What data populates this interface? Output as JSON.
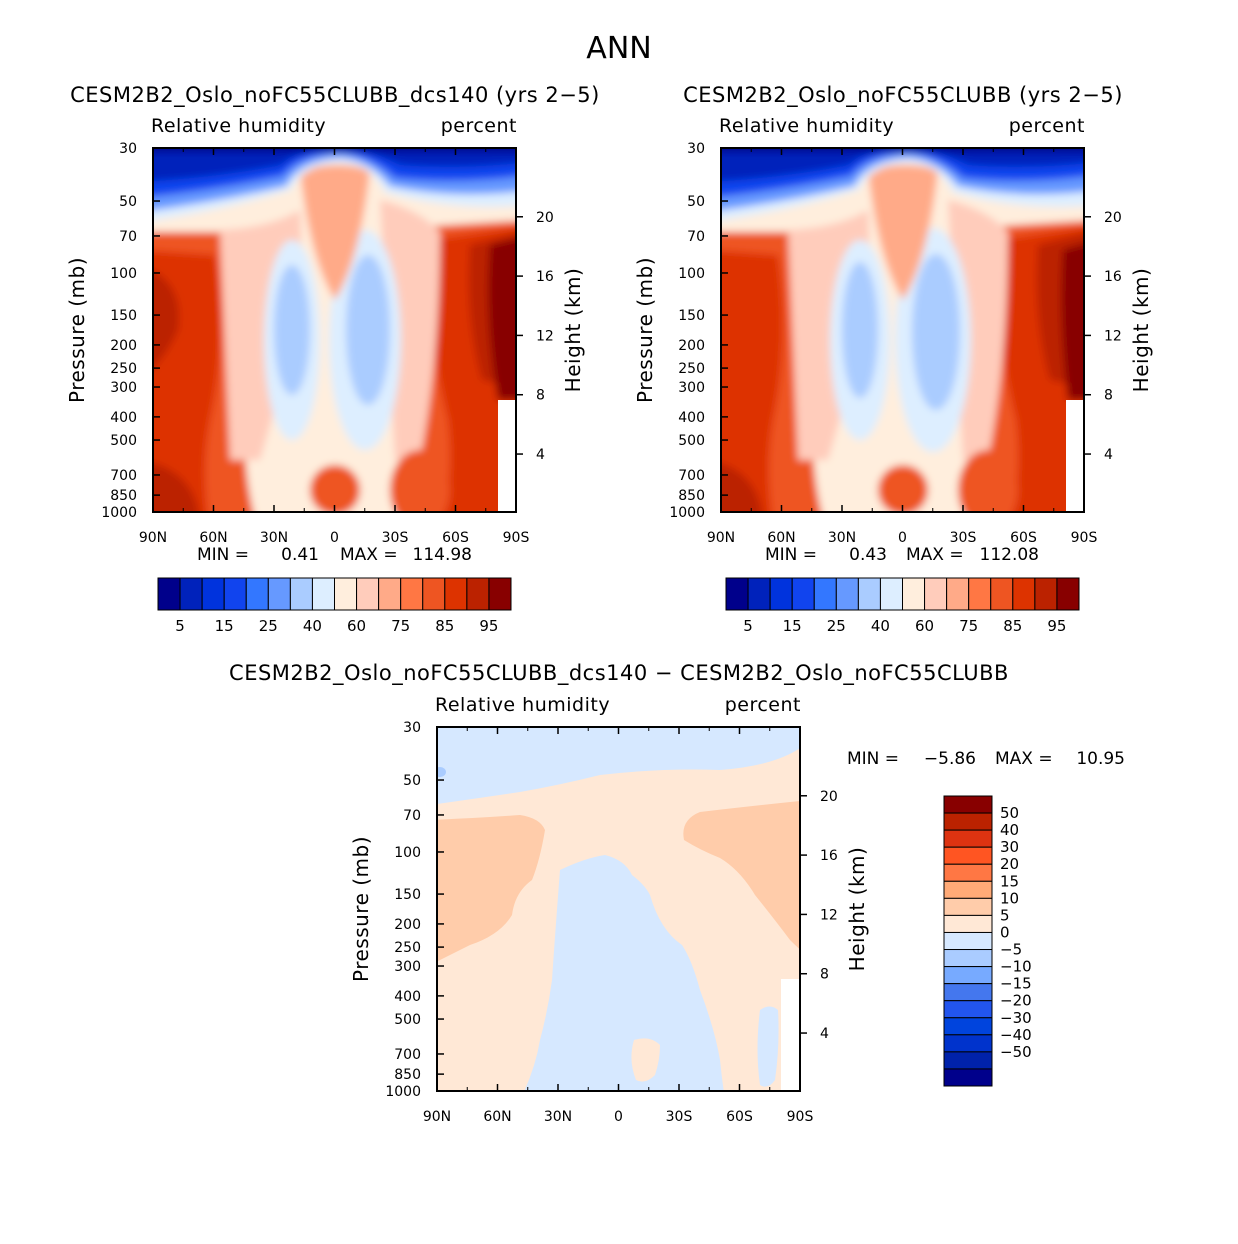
{
  "chart_data": {
    "title": "ANN",
    "panels": [
      {
        "id": "test",
        "type": "heatmap",
        "case_title": "CESM2B2_Oslo_noFC55CLUBB_dcs140 (yrs 2−5)",
        "variable": "Relative humidity",
        "units": "percent",
        "ylabel": "Pressure (mb)",
        "ylabel_right": "Height (km)",
        "x_ticks": [
          "90N",
          "60N",
          "30N",
          "0",
          "30S",
          "60S",
          "90S"
        ],
        "y_ticks": [
          "30",
          "50",
          "70",
          "100",
          "150",
          "200",
          "250",
          "300",
          "400",
          "500",
          "700",
          "850",
          "1000"
        ],
        "right_ticks": [
          "20",
          "16",
          "12",
          "8",
          "4"
        ],
        "min_label": "MIN =",
        "min_value": "0.41",
        "max_label": "MAX =",
        "max_value": "114.98",
        "colorbar_labels": [
          "5",
          "15",
          "25",
          "40",
          "60",
          "75",
          "85",
          "95"
        ]
      },
      {
        "id": "control",
        "type": "heatmap",
        "case_title": "CESM2B2_Oslo_noFC55CLUBB (yrs 2−5)",
        "variable": "Relative humidity",
        "units": "percent",
        "ylabel": "Pressure (mb)",
        "ylabel_right": "Height (km)",
        "x_ticks": [
          "90N",
          "60N",
          "30N",
          "0",
          "30S",
          "60S",
          "90S"
        ],
        "y_ticks": [
          "30",
          "50",
          "70",
          "100",
          "150",
          "200",
          "250",
          "300",
          "400",
          "500",
          "700",
          "850",
          "1000"
        ],
        "right_ticks": [
          "20",
          "16",
          "12",
          "8",
          "4"
        ],
        "min_label": "MIN =",
        "min_value": "0.43",
        "max_label": "MAX =",
        "max_value": "112.08",
        "colorbar_labels": [
          "5",
          "15",
          "25",
          "40",
          "60",
          "75",
          "85",
          "95"
        ]
      },
      {
        "id": "diff",
        "type": "heatmap",
        "case_title": "CESM2B2_Oslo_noFC55CLUBB_dcs140 − CESM2B2_Oslo_noFC55CLUBB",
        "variable": "Relative humidity",
        "units": "percent",
        "ylabel": "Pressure (mb)",
        "ylabel_right": "Height (km)",
        "x_ticks": [
          "90N",
          "60N",
          "30N",
          "0",
          "30S",
          "60S",
          "90S"
        ],
        "y_ticks": [
          "30",
          "50",
          "70",
          "100",
          "150",
          "200",
          "250",
          "300",
          "400",
          "500",
          "700",
          "850",
          "1000"
        ],
        "right_ticks": [
          "20",
          "16",
          "12",
          "8",
          "4"
        ],
        "min_label": "MIN =",
        "min_value": "−5.86",
        "max_label": "MAX =",
        "max_value": "10.95",
        "colorbar_labels": [
          "50",
          "40",
          "30",
          "20",
          "15",
          "10",
          "5",
          "0",
          "−5",
          "−10",
          "−15",
          "−20",
          "−30",
          "−40",
          "−50"
        ]
      }
    ],
    "colormaps": {
      "abs": [
        "#00008b",
        "#0022bb",
        "#0033dd",
        "#1144ee",
        "#3377ff",
        "#6699ff",
        "#aaccff",
        "#ddeeff",
        "#ffeedd",
        "#ffccbb",
        "#ffaa88",
        "#ff7744",
        "#ee5522",
        "#dd3300",
        "#bb2200",
        "#880000"
      ],
      "diff": [
        "#00008b",
        "#0022aa",
        "#0033cc",
        "#0044dd",
        "#2255ee",
        "#4477ee",
        "#77aaff",
        "#aaccff",
        "#d6e8ff",
        "#ffe8d6",
        "#ffccaa",
        "#ffaa77",
        "#ff7744",
        "#ff5522",
        "#dd3311",
        "#bb2200",
        "#880000"
      ]
    }
  }
}
